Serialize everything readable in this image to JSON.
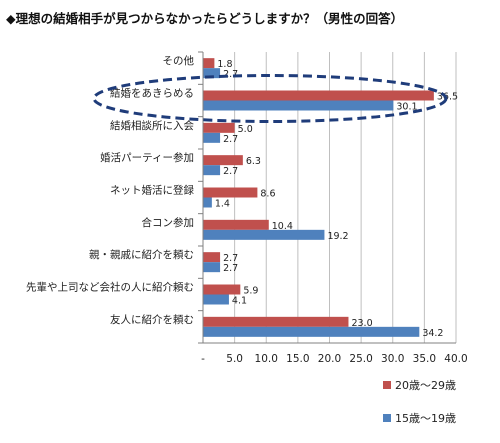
{
  "chart_data": {
    "type": "bar",
    "orientation": "horizontal",
    "title": "◆理想の結婚相手が見つからなかったらどうしますか？（男性の回答）",
    "categories": [
      "その他",
      "結婚をあきらめる",
      "結婚相談所に入会",
      "婚活パーティー参加",
      "ネット婚活に登録",
      "合コン参加",
      "親・親戚に紹介を頼む",
      "先輩や上司など会社の人に紹介頼む",
      "友人に紹介を頼む"
    ],
    "series": [
      {
        "name": "20歳〜29歳",
        "color": "#c0504d",
        "values": [
          1.8,
          36.5,
          5.0,
          6.3,
          8.6,
          10.4,
          2.7,
          5.9,
          23.0
        ]
      },
      {
        "name": "15歳〜19歳",
        "color": "#4f81bd",
        "values": [
          2.7,
          30.1,
          2.7,
          2.7,
          1.4,
          19.2,
          2.7,
          4.1,
          34.2
        ]
      }
    ],
    "value_labels": [
      [
        "1.8",
        "36.5",
        "5.0",
        "6.3",
        "8.6",
        "10.4",
        "2.7",
        "5.9",
        "23.0"
      ],
      [
        "2.7",
        "30.1",
        "2.7",
        "2.7",
        "1.4",
        "19.2",
        "2.7",
        "4.1",
        "34.2"
      ]
    ],
    "xlim": [
      0,
      40
    ],
    "x_ticks": [
      "-",
      "5.0",
      "10.0",
      "15.0",
      "20.0",
      "25.0",
      "30.0",
      "35.0",
      "40.0"
    ],
    "gridlines": true,
    "legend_position": "bottom-right",
    "highlight_category": "結婚をあきらめる",
    "highlight_color": "#1f3c7a"
  }
}
